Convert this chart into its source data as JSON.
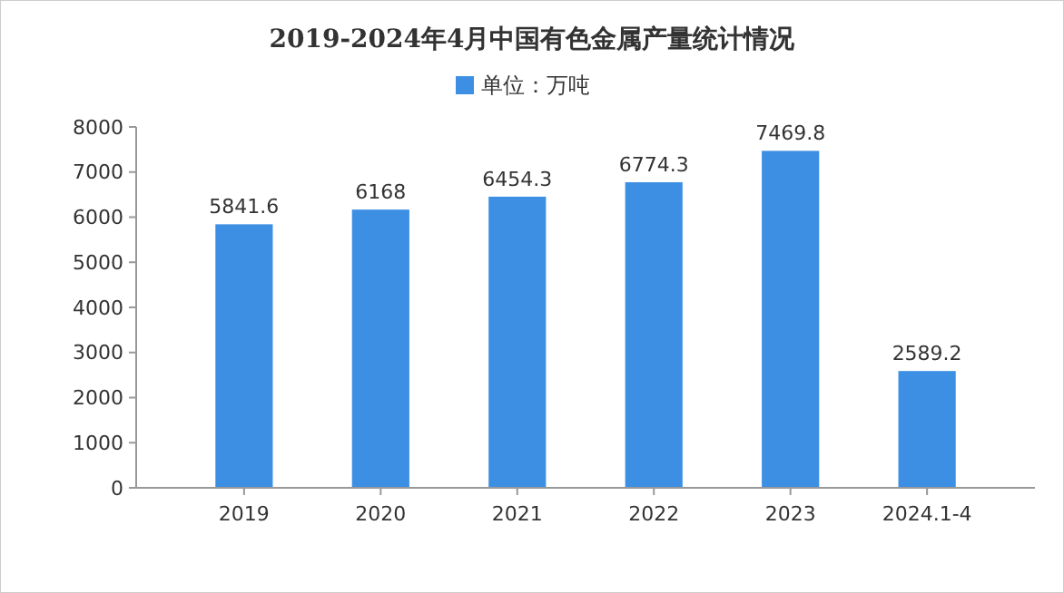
{
  "chart_data": {
    "type": "bar",
    "title": "2019-2024年4月中国有色金属产量统计情况",
    "categories": [
      "2019",
      "2020",
      "2021",
      "2022",
      "2023",
      "2024.1-4"
    ],
    "series": [
      {
        "name": "单位：万吨",
        "color": "#3d8fe3",
        "values": [
          5841.6,
          6168,
          6454.3,
          6774.3,
          7469.8,
          2589.2
        ]
      }
    ],
    "ylim": [
      0,
      8000
    ],
    "yticks": [
      0,
      1000,
      2000,
      3000,
      4000,
      5000,
      6000,
      7000,
      8000
    ],
    "data_labels": true,
    "legend": "top",
    "grid": false
  }
}
